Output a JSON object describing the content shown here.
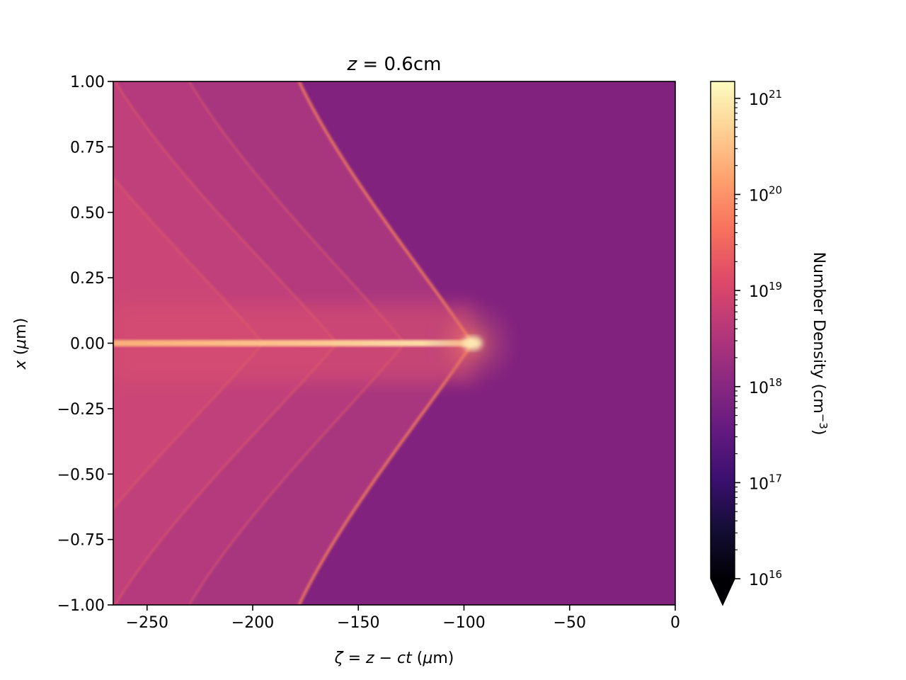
{
  "chart_data": {
    "type": "heatmap",
    "title": {
      "prefix": "z",
      "eq": " = ",
      "value": "0.6cm"
    },
    "xlabel": {
      "zeta": "ζ",
      "eq1": " = ",
      "z": "z",
      "minus": " − ",
      "ct": "ct",
      "open": " (",
      "mu": "μ",
      "unit": "m)"
    },
    "ylabel": {
      "x": "x",
      "open": " (",
      "mu": "μ",
      "unit": "m)"
    },
    "xlim": [
      -266,
      0
    ],
    "ylim": [
      -1.0,
      1.0
    ],
    "xticks": [
      -250,
      -200,
      -150,
      -100,
      -50,
      0
    ],
    "xtick_labels": [
      "−250",
      "−200",
      "−150",
      "−100",
      "−50",
      "0"
    ],
    "yticks": [
      1.0,
      0.75,
      0.5,
      0.25,
      0.0,
      -0.25,
      -0.5,
      -0.75,
      -1.0
    ],
    "ytick_labels": [
      "1.00",
      "0.75",
      "0.50",
      "0.25",
      "0.00",
      "−0.25",
      "−0.50",
      "−0.75",
      "−1.00"
    ],
    "colormap": "magma",
    "colorbar": {
      "scale": "log",
      "range": [
        1e+16,
        1.5e+21
      ],
      "extend": "min",
      "ticks": [
        {
          "base": "10",
          "exp": "16",
          "value": 1e+16
        },
        {
          "base": "10",
          "exp": "17",
          "value": 1e+17
        },
        {
          "base": "10",
          "exp": "18",
          "value": 1e+18
        },
        {
          "base": "10",
          "exp": "19",
          "value": 1e+19
        },
        {
          "base": "10",
          "exp": "20",
          "value": 1e+20
        },
        {
          "base": "10",
          "exp": "21",
          "value": 1e+21
        }
      ],
      "label": {
        "text": "Number Density (cm",
        "sup": "−3",
        "close": ")"
      }
    },
    "features": {
      "background_density": 1e+18,
      "axis_filament_peak_density": 3e+20,
      "axis_filament_peak_x": -96,
      "shock_front_apex_x": -96,
      "shock_front_edge_x": -178,
      "trailing_fronts_apex_x": [
        -128,
        -160,
        -195
      ],
      "trailing_fronts_edge_x": [
        -230,
        -265,
        -300
      ]
    }
  }
}
